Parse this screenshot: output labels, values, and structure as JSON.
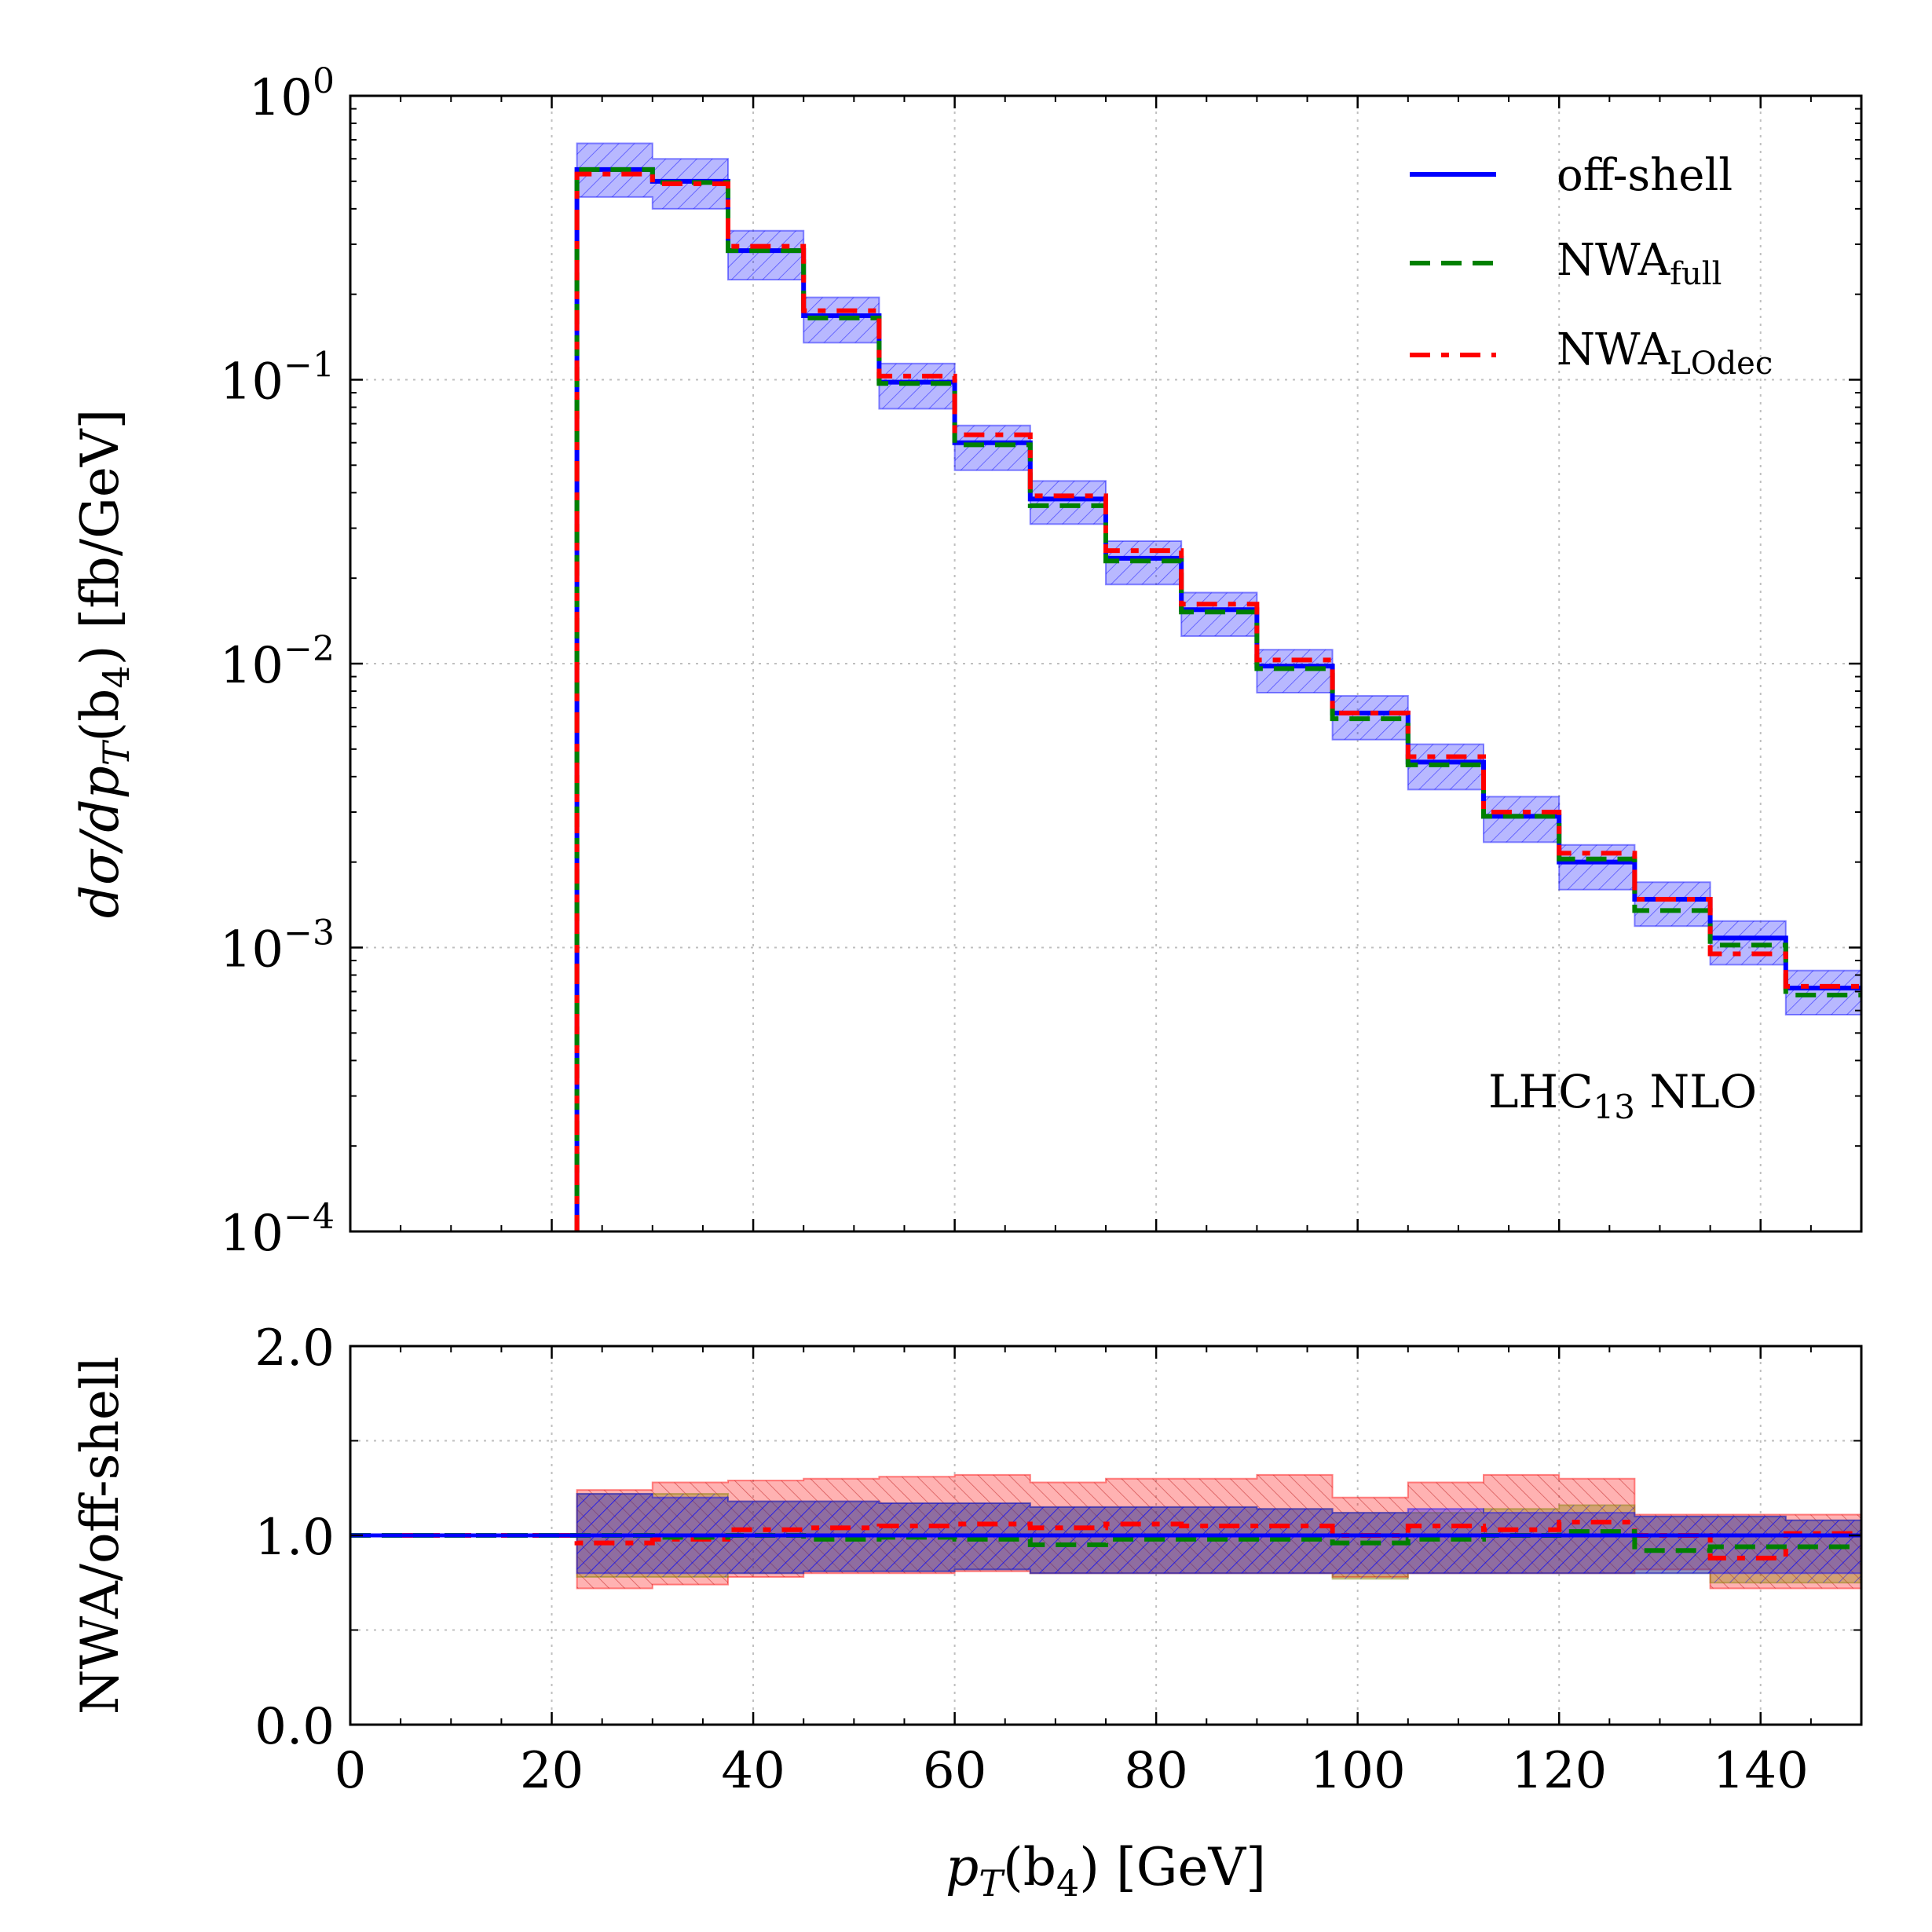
{
  "colors": {
    "offshell": "#0000ff",
    "nwa_full": "#008000",
    "nwa_lodec": "#ff0000",
    "band_blue": "#0000ff",
    "band_red": "#ff0000",
    "band_olive": "#808000",
    "grid": "#bfbfbf"
  },
  "text": {
    "xlabel_main": "p",
    "xlabel_sub": "T",
    "xlabel_arg": "(b",
    "xlabel_arg_sub": "4",
    "xlabel_tail": ") [GeV]",
    "ylabel_main": "dσ/dp",
    "ylabel_sub": "T",
    "ylabel_arg": "(b",
    "ylabel_arg_sub": "4",
    "ylabel_tail": ") [fb/GeV]",
    "ratio_ylabel": "NWA/off-shell",
    "annotation_main": "LHC",
    "annotation_sub": "13",
    "annotation_tail": " NLO"
  },
  "legend": [
    {
      "key": "offshell",
      "label": "off-shell",
      "sub": ""
    },
    {
      "key": "nwa_full",
      "label": "NWA",
      "sub": "full"
    },
    {
      "key": "nwa_lodec",
      "label": "NWA",
      "sub": "LOdec"
    }
  ],
  "chart_data": [
    {
      "type": "line",
      "style": "step-histogram",
      "title": "",
      "xlabel": "p_T(b_4) [GeV]",
      "ylabel": "dσ/dp_T(b_4) [fb/GeV]",
      "xlim": [
        0,
        150
      ],
      "ylim": [
        0.0001,
        1
      ],
      "yscale": "log",
      "grid": true,
      "legend_position": "top-right",
      "annotation": "LHC13 NLO",
      "x_ticks": [
        "0",
        "20",
        "40",
        "60",
        "80",
        "100",
        "120",
        "140"
      ],
      "y_ticks": [
        {
          "base": "10",
          "exp": "0",
          "value": 1
        },
        {
          "base": "10",
          "exp": "−1",
          "value": 0.1
        },
        {
          "base": "10",
          "exp": "−2",
          "value": 0.01
        },
        {
          "base": "10",
          "exp": "−3",
          "value": 0.001
        },
        {
          "base": "10",
          "exp": "−4",
          "value": 0.0001
        }
      ],
      "bin_edges": [
        22.5,
        30,
        37.5,
        45,
        52.5,
        60,
        67.5,
        75,
        82.5,
        90,
        97.5,
        105,
        112.5,
        120,
        127.5,
        135,
        142.5,
        150
      ],
      "series": [
        {
          "name": "off-shell",
          "key": "offshell",
          "values": [
            0.55,
            0.5,
            0.285,
            0.168,
            0.098,
            0.06,
            0.038,
            0.0235,
            0.0155,
            0.0098,
            0.0067,
            0.0045,
            0.0029,
            0.002,
            0.00148,
            0.00108,
            0.00072
          ]
        },
        {
          "name": "NWA_full",
          "key": "nwa_full",
          "values": [
            0.55,
            0.495,
            0.285,
            0.165,
            0.097,
            0.059,
            0.036,
            0.023,
            0.0152,
            0.0096,
            0.0064,
            0.0044,
            0.0029,
            0.00205,
            0.00135,
            0.00102,
            0.00068
          ]
        },
        {
          "name": "NWA_LOdec",
          "key": "nwa_lodec",
          "values": [
            0.53,
            0.49,
            0.295,
            0.175,
            0.103,
            0.064,
            0.039,
            0.025,
            0.0162,
            0.0103,
            0.0067,
            0.0047,
            0.003,
            0.00215,
            0.00148,
            0.00095,
            0.00073
          ]
        }
      ],
      "uncertainty_band": {
        "name": "off-shell scale band",
        "upper": [
          0.68,
          0.6,
          0.335,
          0.195,
          0.114,
          0.069,
          0.044,
          0.027,
          0.0178,
          0.0112,
          0.0077,
          0.0052,
          0.0034,
          0.0023,
          0.0017,
          0.00124,
          0.00083
        ],
        "lower": [
          0.44,
          0.4,
          0.225,
          0.135,
          0.079,
          0.048,
          0.031,
          0.019,
          0.0125,
          0.0079,
          0.0054,
          0.0036,
          0.00235,
          0.0016,
          0.00119,
          0.00087,
          0.00058
        ]
      }
    },
    {
      "type": "line",
      "style": "step-histogram",
      "title": "",
      "xlabel": "p_T(b_4) [GeV]",
      "ylabel": "NWA/off-shell",
      "xlim": [
        0,
        150
      ],
      "ylim": [
        0,
        2
      ],
      "grid": true,
      "x_ticks": [
        "0",
        "20",
        "40",
        "60",
        "80",
        "100",
        "120",
        "140"
      ],
      "y_ticks": [
        {
          "label": "0.0",
          "value": 0
        },
        {
          "label": "1.0",
          "value": 1
        },
        {
          "label": "2.0",
          "value": 2
        }
      ],
      "bin_edges": [
        22.5,
        30,
        37.5,
        45,
        52.5,
        60,
        67.5,
        75,
        82.5,
        90,
        97.5,
        105,
        112.5,
        120,
        127.5,
        135,
        142.5,
        150
      ],
      "baseline_x_range": [
        0,
        22.5
      ],
      "series": [
        {
          "name": "off-shell",
          "key": "offshell",
          "values": [
            1,
            1,
            1,
            1,
            1,
            1,
            1,
            1,
            1,
            1,
            1,
            1,
            1,
            1,
            1,
            1,
            1
          ]
        },
        {
          "name": "NWA_full",
          "key": "nwa_full",
          "values": [
            1.0,
            0.99,
            1.0,
            0.98,
            0.99,
            0.98,
            0.95,
            0.98,
            0.98,
            0.98,
            0.96,
            0.98,
            1.0,
            1.02,
            0.92,
            0.94,
            0.94
          ]
        },
        {
          "name": "NWA_LOdec",
          "key": "nwa_lodec",
          "values": [
            0.96,
            0.98,
            1.03,
            1.04,
            1.05,
            1.06,
            1.04,
            1.06,
            1.05,
            1.05,
            1.0,
            1.05,
            1.03,
            1.07,
            1.0,
            0.88,
            1.01
          ]
        }
      ],
      "bands": [
        {
          "name": "NWA_LOdec band",
          "key": "band_red",
          "upper": [
            1.24,
            1.28,
            1.29,
            1.3,
            1.31,
            1.32,
            1.28,
            1.3,
            1.3,
            1.32,
            1.2,
            1.28,
            1.32,
            1.3,
            1.11,
            1.11,
            1.11
          ],
          "lower": [
            0.72,
            0.74,
            0.78,
            0.8,
            0.8,
            0.81,
            0.8,
            0.8,
            0.8,
            0.8,
            0.78,
            0.8,
            0.8,
            0.8,
            0.82,
            0.72,
            0.72
          ]
        },
        {
          "name": "NWA_full band",
          "key": "band_olive",
          "upper": [
            1.22,
            1.22,
            1.18,
            1.18,
            1.17,
            1.17,
            1.15,
            1.15,
            1.15,
            1.14,
            1.12,
            1.12,
            1.14,
            1.16,
            1.1,
            1.1,
            1.08
          ],
          "lower": [
            0.78,
            0.78,
            0.8,
            0.81,
            0.81,
            0.82,
            0.8,
            0.8,
            0.8,
            0.8,
            0.77,
            0.8,
            0.8,
            0.8,
            0.8,
            0.75,
            0.75
          ]
        },
        {
          "name": "off-shell band",
          "key": "band_blue",
          "upper": [
            1.22,
            1.2,
            1.18,
            1.18,
            1.17,
            1.17,
            1.15,
            1.15,
            1.15,
            1.14,
            1.12,
            1.14,
            1.12,
            1.12,
            1.1,
            1.1,
            1.08
          ],
          "lower": [
            0.8,
            0.8,
            0.8,
            0.81,
            0.81,
            0.82,
            0.8,
            0.8,
            0.8,
            0.8,
            0.8,
            0.8,
            0.8,
            0.8,
            0.8,
            0.8,
            0.8
          ]
        }
      ]
    }
  ]
}
